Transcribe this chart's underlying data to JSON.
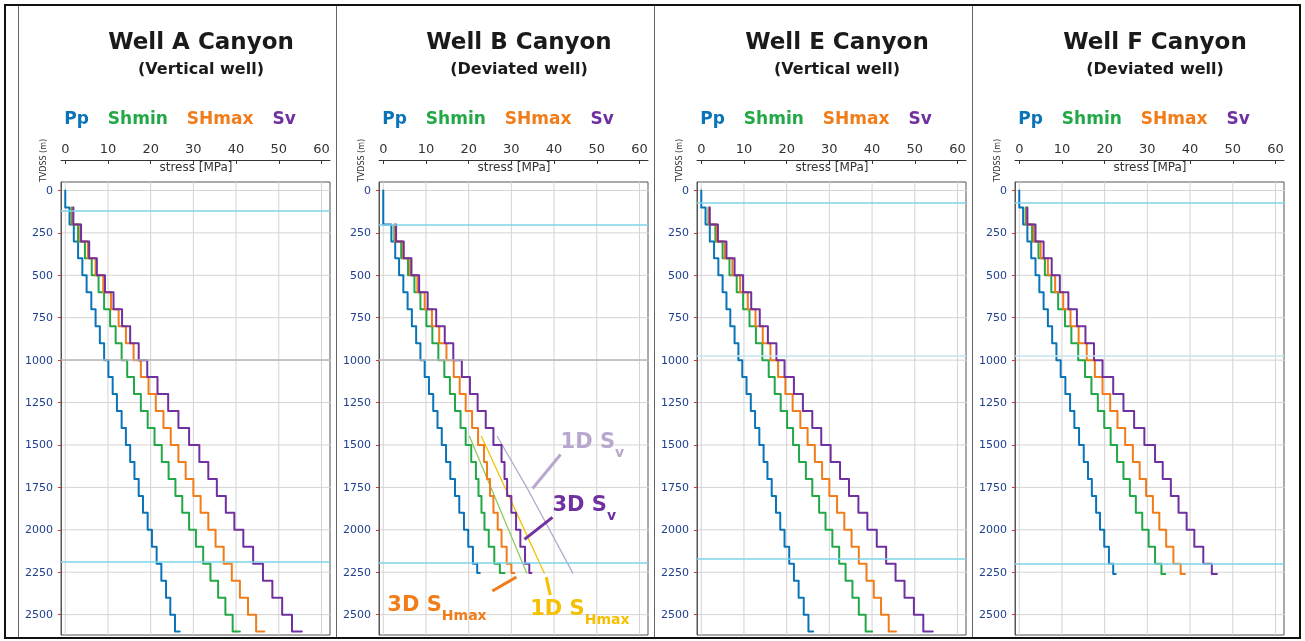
{
  "chart_data": [
    {
      "type": "step",
      "title": "Well A Canyon",
      "subtitle": "(Vertical well)",
      "xlabel": "stress [MPa]",
      "ylabel": "TVDSS (m)",
      "xlim": [
        -1,
        62
      ],
      "xticks": [
        0,
        10,
        20,
        30,
        40,
        50,
        60
      ],
      "ylim": [
        2620,
        -50
      ],
      "yticks": [
        0,
        250,
        500,
        750,
        1000,
        1250,
        1500,
        1750,
        2000,
        2250,
        2500
      ],
      "grid": true,
      "legend": "top",
      "ref_lines": [
        {
          "axis": "y",
          "value": 120,
          "color": "#7fd3e8"
        },
        {
          "axis": "y",
          "value": 1000,
          "color": "#b8b8b8"
        },
        {
          "axis": "y",
          "value": 2190,
          "color": "#7fd3e8"
        }
      ],
      "series": [
        {
          "name": "Pp",
          "color": "#0a74b8",
          "x": [
            0,
            1.0,
            2.0,
            3.0,
            4.0,
            5.0,
            6.1,
            7.1,
            8.1,
            9.1,
            10.1,
            11.1,
            12.1,
            13.2,
            14.2,
            15.2,
            16.2,
            17.2,
            18.2,
            19.3,
            20.3,
            21.4,
            22.5,
            23.6,
            24.6,
            25.7,
            26.8
          ],
          "values": [
            0,
            100,
            200,
            300,
            400,
            500,
            600,
            700,
            800,
            900,
            1000,
            1100,
            1200,
            1300,
            1400,
            1500,
            1600,
            1700,
            1800,
            1900,
            2000,
            2100,
            2200,
            2300,
            2400,
            2500,
            2600
          ]
        },
        {
          "name": "Shmin",
          "color": "#23a847",
          "x": [
            1.5,
            3.0,
            4.6,
            6.2,
            7.8,
            9.1,
            10.5,
            11.8,
            13.2,
            14.5,
            16.1,
            17.7,
            19.3,
            20.9,
            22.6,
            24.2,
            25.8,
            27.4,
            29.0,
            30.6,
            32.3,
            34.0,
            35.8,
            37.5,
            39.2,
            40.9
          ],
          "values": [
            100,
            200,
            300,
            400,
            500,
            600,
            700,
            800,
            900,
            1000,
            1100,
            1200,
            1300,
            1400,
            1500,
            1600,
            1700,
            1800,
            1900,
            2000,
            2100,
            2200,
            2300,
            2400,
            2500,
            2600
          ]
        },
        {
          "name": "SHmax",
          "color": "#f07d1a",
          "x": [
            1.7,
            3.5,
            5.3,
            7.1,
            8.9,
            10.7,
            12.5,
            14.2,
            16.0,
            17.7,
            19.5,
            21.2,
            23.0,
            24.7,
            26.5,
            28.2,
            30.0,
            31.7,
            33.5,
            35.2,
            37.1,
            39.0,
            40.9,
            42.8,
            44.7,
            46.6
          ],
          "values": [
            100,
            200,
            300,
            400,
            500,
            600,
            700,
            800,
            900,
            1000,
            1100,
            1200,
            1300,
            1400,
            1500,
            1600,
            1700,
            1800,
            1900,
            2000,
            2100,
            2200,
            2300,
            2400,
            2500,
            2600
          ]
        },
        {
          "name": "Sv",
          "color": "#7030a0",
          "x": [
            1.9,
            3.7,
            5.6,
            7.4,
            9.3,
            11.3,
            13.3,
            15.2,
            17.2,
            19.2,
            21.6,
            24.1,
            26.5,
            29.0,
            31.4,
            33.5,
            35.5,
            37.6,
            39.6,
            41.7,
            44.0,
            46.3,
            48.5,
            50.8,
            53.1,
            55.4
          ],
          "values": [
            100,
            200,
            300,
            400,
            500,
            600,
            700,
            800,
            900,
            1000,
            1100,
            1200,
            1300,
            1400,
            1500,
            1600,
            1700,
            1800,
            1900,
            2000,
            2100,
            2200,
            2300,
            2400,
            2500,
            2600
          ]
        }
      ]
    },
    {
      "type": "step",
      "title": "Well B Canyon",
      "subtitle": "(Deviated well)",
      "xlabel": "stress [MPa]",
      "ylabel": "TVDSS (m)",
      "xlim": [
        -1,
        62
      ],
      "xticks": [
        0,
        10,
        20,
        30,
        40,
        50,
        60
      ],
      "ylim": [
        2620,
        -50
      ],
      "yticks": [
        0,
        250,
        500,
        750,
        1000,
        1250,
        1500,
        1750,
        2000,
        2250,
        2500
      ],
      "grid": true,
      "legend": "top",
      "ref_lines": [
        {
          "axis": "y",
          "value": 200,
          "color": "#7fd3e8"
        },
        {
          "axis": "y",
          "value": 1000,
          "color": "#b8b8b8"
        },
        {
          "axis": "y",
          "value": 2195,
          "color": "#7fd3e8"
        }
      ],
      "annotations": [
        {
          "text": "1D S$_{v}$",
          "x": 34.5,
          "y": 1780
        },
        {
          "text": "3D S$_{v}$",
          "x": 32.6,
          "y": 2080
        },
        {
          "text": "3D S$_{Hmax}$",
          "x": 30.7,
          "y": 2255
        },
        {
          "text": "1D S$_{Hmax}$",
          "x": 37.7,
          "y": 2255
        }
      ],
      "series": [
        {
          "name": "Pp",
          "color": "#0a74b8",
          "x": [
            0,
            1.9,
            2.8,
            3.7,
            4.7,
            5.7,
            6.7,
            7.7,
            8.7,
            9.7,
            10.7,
            11.7,
            12.7,
            13.7,
            14.7,
            15.7,
            16.8,
            17.8,
            18.9,
            19.9,
            21.0,
            22.0,
            22.6
          ],
          "values": [
            0,
            200,
            300,
            400,
            500,
            600,
            700,
            800,
            900,
            1000,
            1100,
            1200,
            1300,
            1400,
            1500,
            1600,
            1700,
            1800,
            1900,
            2000,
            2100,
            2200,
            2255
          ]
        },
        {
          "name": "Shmin",
          "color": "#23a847",
          "x": [
            2.6,
            4.2,
            5.8,
            7.3,
            8.7,
            10.1,
            11.5,
            12.9,
            14.3,
            15.6,
            16.8,
            18.1,
            19.3,
            20.6,
            21.7,
            22.3,
            23.0,
            23.7,
            24.7,
            26.0,
            27.3,
            28.4
          ],
          "values": [
            200,
            300,
            400,
            500,
            600,
            700,
            800,
            900,
            1000,
            1100,
            1200,
            1300,
            1400,
            1500,
            1600,
            1700,
            1800,
            1900,
            2000,
            2100,
            2200,
            2255
          ]
        },
        {
          "name": "SHmax",
          "color": "#f07d1a",
          "x": [
            2.8,
            4.6,
            6.3,
            8.0,
            9.7,
            11.4,
            13.1,
            14.8,
            16.5,
            17.9,
            19.3,
            20.8,
            22.2,
            23.6,
            24.3,
            25.0,
            25.8,
            26.8,
            27.7,
            28.9,
            30.0,
            30.7
          ],
          "values": [
            200,
            300,
            400,
            500,
            600,
            700,
            800,
            900,
            1000,
            1100,
            1200,
            1300,
            1400,
            1500,
            1600,
            1700,
            1800,
            1900,
            2000,
            2100,
            2200,
            2255
          ]
        },
        {
          "name": "Sv",
          "color": "#7030a0",
          "x": [
            3.0,
            4.8,
            6.6,
            8.4,
            10.4,
            12.4,
            14.4,
            16.4,
            18.4,
            20.3,
            22.1,
            24.0,
            25.8,
            27.7,
            28.4,
            29.0,
            30.0,
            31.1,
            32.1,
            33.2,
            34.2,
            34.7
          ],
          "values": [
            200,
            300,
            400,
            500,
            600,
            700,
            800,
            900,
            1000,
            1100,
            1200,
            1300,
            1400,
            1500,
            1600,
            1700,
            1800,
            1900,
            2000,
            2100,
            2200,
            2255
          ]
        },
        {
          "type": "line",
          "color": "#8ccb5e",
          "x": [
            20.2,
            33.6
          ],
          "values": [
            1450,
            2255
          ]
        },
        {
          "type": "line",
          "color": "#f5c000",
          "x": [
            23.0,
            37.7
          ],
          "values": [
            1450,
            2255
          ]
        },
        {
          "type": "line",
          "color": "#b8a8d0",
          "x": [
            26.7,
            33.6,
            44.4
          ],
          "values": [
            1450,
            1750,
            2255
          ]
        }
      ]
    },
    {
      "type": "step",
      "title": "Well E Canyon",
      "subtitle": "(Vertical well)",
      "xlabel": "stress [MPa]",
      "ylabel": "TVDSS (m)",
      "xlim": [
        -1,
        62
      ],
      "xticks": [
        0,
        10,
        20,
        30,
        40,
        50,
        60
      ],
      "ylim": [
        2620,
        -50
      ],
      "yticks": [
        0,
        250,
        500,
        750,
        1000,
        1250,
        1500,
        1750,
        2000,
        2250,
        2500
      ],
      "grid": true,
      "legend": "top",
      "ref_lines": [
        {
          "axis": "y",
          "value": 75,
          "color": "#7fd3e8"
        },
        {
          "axis": "y",
          "value": 975,
          "color": "#c4e6f0"
        },
        {
          "axis": "y",
          "value": 2170,
          "color": "#7fd3e8"
        }
      ],
      "series": [
        {
          "name": "Pp",
          "color": "#0a74b8",
          "x": [
            0,
            1.0,
            2.0,
            3.0,
            4.0,
            5.0,
            5.9,
            6.8,
            7.8,
            8.7,
            9.6,
            10.6,
            11.6,
            12.6,
            13.6,
            14.6,
            15.5,
            16.5,
            17.5,
            18.5,
            19.5,
            20.6,
            21.7,
            22.8,
            24.0,
            25.1,
            26.2
          ],
          "values": [
            0,
            100,
            200,
            300,
            400,
            500,
            600,
            700,
            800,
            900,
            1000,
            1100,
            1200,
            1300,
            1400,
            1500,
            1600,
            1700,
            1800,
            1900,
            2000,
            2100,
            2200,
            2300,
            2400,
            2500,
            2600
          ]
        },
        {
          "name": "Shmin",
          "color": "#23a847",
          "x": [
            1.7,
            3.3,
            5.0,
            6.6,
            8.3,
            9.8,
            11.3,
            12.8,
            14.3,
            15.8,
            17.2,
            18.6,
            20.1,
            21.5,
            22.9,
            24.5,
            26.0,
            27.6,
            29.1,
            30.7,
            32.3,
            33.8,
            35.4,
            36.9,
            38.5,
            40.0
          ],
          "values": [
            100,
            200,
            300,
            400,
            500,
            600,
            700,
            800,
            900,
            1000,
            1100,
            1200,
            1300,
            1400,
            1500,
            1600,
            1700,
            1800,
            1900,
            2000,
            2100,
            2200,
            2300,
            2400,
            2500,
            2600
          ]
        },
        {
          "name": "SHmax",
          "color": "#f07d1a",
          "x": [
            1.8,
            3.6,
            5.5,
            7.3,
            9.1,
            10.9,
            12.7,
            14.4,
            16.2,
            18.0,
            19.7,
            21.4,
            23.2,
            24.9,
            26.6,
            28.3,
            30.0,
            31.8,
            33.5,
            35.2,
            36.9,
            38.7,
            40.4,
            42.1,
            43.9,
            45.6
          ],
          "values": [
            100,
            200,
            300,
            400,
            500,
            600,
            700,
            800,
            900,
            1000,
            1100,
            1200,
            1300,
            1400,
            1500,
            1600,
            1700,
            1800,
            1900,
            2000,
            2100,
            2200,
            2300,
            2400,
            2500,
            2600
          ]
        },
        {
          "name": "Sv",
          "color": "#7030a0",
          "x": [
            2.0,
            3.9,
            5.9,
            7.8,
            9.8,
            11.7,
            13.7,
            15.6,
            17.6,
            19.5,
            21.7,
            23.8,
            26.0,
            28.1,
            30.3,
            32.5,
            34.6,
            36.8,
            38.9,
            41.1,
            43.3,
            45.5,
            47.6,
            49.8,
            52.0,
            54.2
          ],
          "values": [
            100,
            200,
            300,
            400,
            500,
            600,
            700,
            800,
            900,
            1000,
            1100,
            1200,
            1300,
            1400,
            1500,
            1600,
            1700,
            1800,
            1900,
            2000,
            2100,
            2200,
            2300,
            2400,
            2500,
            2600
          ]
        }
      ]
    },
    {
      "type": "step",
      "title": "Well F Canyon",
      "subtitle": "(Deviated well)",
      "xlabel": "stress [MPa]",
      "ylabel": "TVDSS (m)",
      "xlim": [
        -1,
        62
      ],
      "xticks": [
        0,
        10,
        20,
        30,
        40,
        50,
        60
      ],
      "ylim": [
        2620,
        -50
      ],
      "yticks": [
        0,
        250,
        500,
        750,
        1000,
        1250,
        1500,
        1750,
        2000,
        2250,
        2500
      ],
      "grid": true,
      "legend": "top",
      "ref_lines": [
        {
          "axis": "y",
          "value": 75,
          "color": "#7fd3e8"
        },
        {
          "axis": "y",
          "value": 975,
          "color": "#c4e6f0"
        },
        {
          "axis": "y",
          "value": 2200,
          "color": "#7fd3e8"
        }
      ],
      "series": [
        {
          "name": "Pp",
          "color": "#0a74b8",
          "x": [
            0,
            0.9,
            1.9,
            2.8,
            3.8,
            4.7,
            5.7,
            6.7,
            7.7,
            8.7,
            9.7,
            10.8,
            11.9,
            12.9,
            14.0,
            15.1,
            16.1,
            17.0,
            18.0,
            18.9,
            19.9,
            21.0,
            22.0,
            22.6
          ],
          "values": [
            0,
            100,
            200,
            300,
            400,
            500,
            600,
            700,
            800,
            900,
            1000,
            1100,
            1200,
            1300,
            1400,
            1500,
            1600,
            1700,
            1800,
            1900,
            2000,
            2100,
            2200,
            2260
          ]
        },
        {
          "name": "Shmin",
          "color": "#23a847",
          "x": [
            1.5,
            3.0,
            4.5,
            6.0,
            7.5,
            9.1,
            10.7,
            12.2,
            13.8,
            15.4,
            16.9,
            18.4,
            19.9,
            21.4,
            22.9,
            24.4,
            25.9,
            27.3,
            28.8,
            30.3,
            31.8,
            33.3,
            34.2
          ],
          "values": [
            100,
            200,
            300,
            400,
            500,
            600,
            700,
            800,
            900,
            1000,
            1100,
            1200,
            1300,
            1400,
            1500,
            1600,
            1700,
            1800,
            1900,
            2000,
            2100,
            2200,
            2260
          ]
        },
        {
          "name": "SHmax",
          "color": "#f07d1a",
          "x": [
            1.7,
            3.4,
            5.0,
            6.7,
            8.4,
            10.3,
            12.0,
            13.9,
            15.8,
            17.7,
            19.5,
            21.3,
            23.0,
            24.8,
            26.6,
            28.2,
            29.7,
            31.3,
            32.8,
            34.4,
            36.1,
            37.8,
            38.8
          ],
          "values": [
            100,
            200,
            300,
            400,
            500,
            600,
            700,
            800,
            900,
            1000,
            1100,
            1200,
            1300,
            1400,
            1500,
            1600,
            1700,
            1800,
            1900,
            2000,
            2100,
            2200,
            2260
          ]
        },
        {
          "name": "Sv",
          "color": "#7030a0",
          "x": [
            1.9,
            3.8,
            5.7,
            7.6,
            9.5,
            11.5,
            13.5,
            15.5,
            17.5,
            19.5,
            22.0,
            24.4,
            26.9,
            29.3,
            31.8,
            33.6,
            35.5,
            37.3,
            39.2,
            41.0,
            43.1,
            45.1,
            46.3
          ],
          "values": [
            100,
            200,
            300,
            400,
            500,
            600,
            700,
            800,
            900,
            1000,
            1100,
            1200,
            1300,
            1400,
            1500,
            1600,
            1700,
            1800,
            1900,
            2000,
            2100,
            2200,
            2260
          ]
        }
      ]
    }
  ]
}
